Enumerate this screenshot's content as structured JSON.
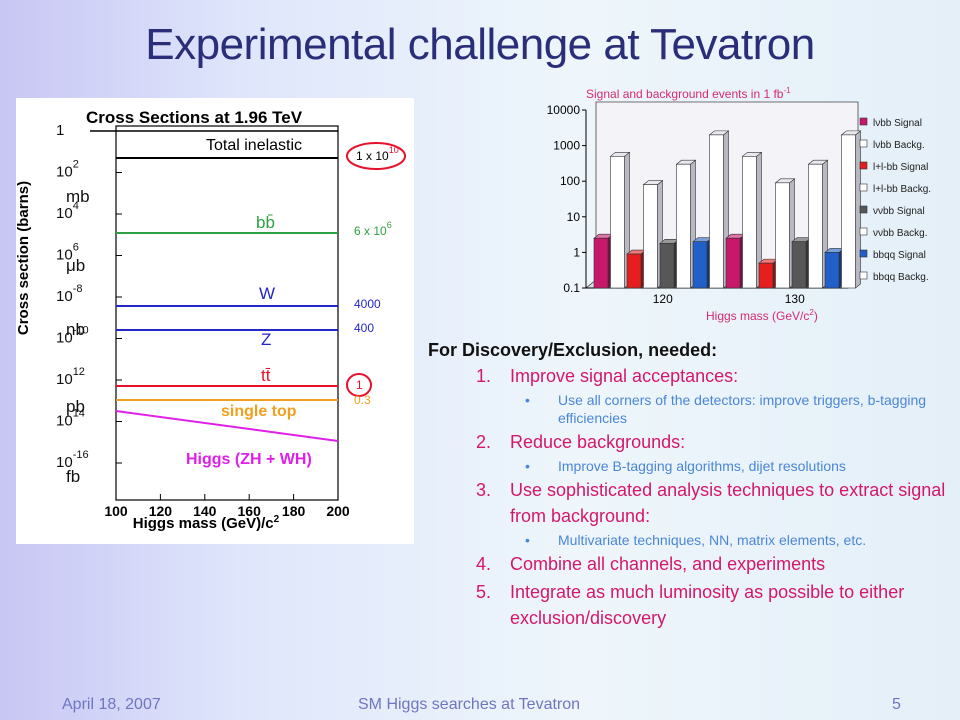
{
  "slide": {
    "title": "Experimental challenge at Tevatron",
    "footer_date": "April 18, 2007",
    "footer_title": "SM Higgs searches at Tevatron",
    "page_number": "5"
  },
  "cross_section_chart": {
    "title": "Cross Sections at 1.96 TeV",
    "ylabel": "Cross section (barns)",
    "xlabel": "Higgs mass (GeV)/c",
    "xlabel_sup": "2",
    "x_ticks": [
      "100",
      "120",
      "140",
      "160",
      "180",
      "200"
    ],
    "y_ticks": [
      {
        "base": "1",
        "exp": ""
      },
      {
        "base": "10",
        "exp": "2"
      },
      {
        "base": "10",
        "exp": "4"
      },
      {
        "base": "10",
        "exp": "6"
      },
      {
        "base": "10",
        "exp": "-8"
      },
      {
        "base": "10",
        "exp": "-10"
      },
      {
        "base": "10",
        "exp": "12"
      },
      {
        "base": "10",
        "exp": "14"
      },
      {
        "base": "10",
        "exp": "-16"
      }
    ],
    "unit_labels": [
      "mb",
      "μb",
      "nb",
      "pb",
      "fb"
    ],
    "processes": [
      {
        "name": "Total inelastic",
        "value": "1 x 10",
        "value_exp": "10",
        "color": "#000000",
        "circled": true
      },
      {
        "name": "bb̄",
        "value": "6 x 10",
        "value_exp": "6",
        "color": "#2ea043",
        "circled": false
      },
      {
        "name": "W",
        "value": "4000",
        "value_exp": "",
        "color": "#2327c8",
        "circled": false
      },
      {
        "name": "Z",
        "value": "400",
        "value_exp": "",
        "color": "#2327c8",
        "circled": false
      },
      {
        "name": "tt̄",
        "value": "1",
        "value_exp": "",
        "color": "#e8102a",
        "circled": true
      },
      {
        "name": "single top",
        "value": "0.3",
        "value_exp": "",
        "color": "#f0a020",
        "circled": false
      },
      {
        "name": "Higgs (ZH + WH)",
        "value": "",
        "value_exp": "",
        "color": "#e020e8",
        "circled": false
      }
    ]
  },
  "chart_data": {
    "type": "bar",
    "title": "Signal and background events in 1 fb",
    "title_sup": "-1",
    "xlabel": "Higgs mass (GeV/c",
    "xlabel_sup": "2",
    "xlabel_end": ")",
    "categories": [
      "120",
      "130"
    ],
    "y_scale": "log",
    "ylim": [
      0.1,
      10000
    ],
    "y_ticks": [
      "0.1",
      "1",
      "10",
      "100",
      "1000",
      "10000"
    ],
    "series": [
      {
        "name": "lνbb Signal",
        "color": "#c8186c",
        "values": [
          2.5,
          2.5
        ]
      },
      {
        "name": "lνbb Backg.",
        "color": "#ffffff",
        "values": [
          500,
          500
        ]
      },
      {
        "name": "l+l-bb Signal",
        "color": "#e61e1e",
        "values": [
          0.9,
          0.5
        ]
      },
      {
        "name": "l+l-bb Backg.",
        "color": "#ffffff",
        "values": [
          80,
          90
        ]
      },
      {
        "name": "ννbb Signal",
        "color": "#575757",
        "values": [
          1.8,
          2.0
        ]
      },
      {
        "name": "ννbb Backg.",
        "color": "#ffffff",
        "values": [
          300,
          300
        ]
      },
      {
        "name": "bbqq Signal",
        "color": "#2060c8",
        "values": [
          2.0,
          1.0
        ]
      },
      {
        "name": "bbqq Backg.",
        "color": "#ffffff",
        "values": [
          2000,
          2000
        ]
      }
    ],
    "legend_position": "right",
    "grid": false
  },
  "content": {
    "heading": "For Discovery/Exclusion, needed:",
    "items": [
      {
        "num": "1.",
        "text": "Improve signal acceptances:",
        "sub": "Use all corners of the detectors: improve triggers, b-tagging efficiencies"
      },
      {
        "num": "2.",
        "text": "Reduce backgrounds:",
        "sub": "Improve B-tagging algorithms, dijet resolutions"
      },
      {
        "num": "3.",
        "text": "Use sophisticated analysis techniques to extract signal from background:",
        "sub": "Multivariate techniques, NN, matrix elements, etc."
      },
      {
        "num": "4.",
        "text": "Combine all channels, and experiments",
        "sub": ""
      },
      {
        "num": "5.",
        "text": "Integrate as much luminosity as possible to either exclusion/discovery",
        "sub": ""
      }
    ]
  }
}
